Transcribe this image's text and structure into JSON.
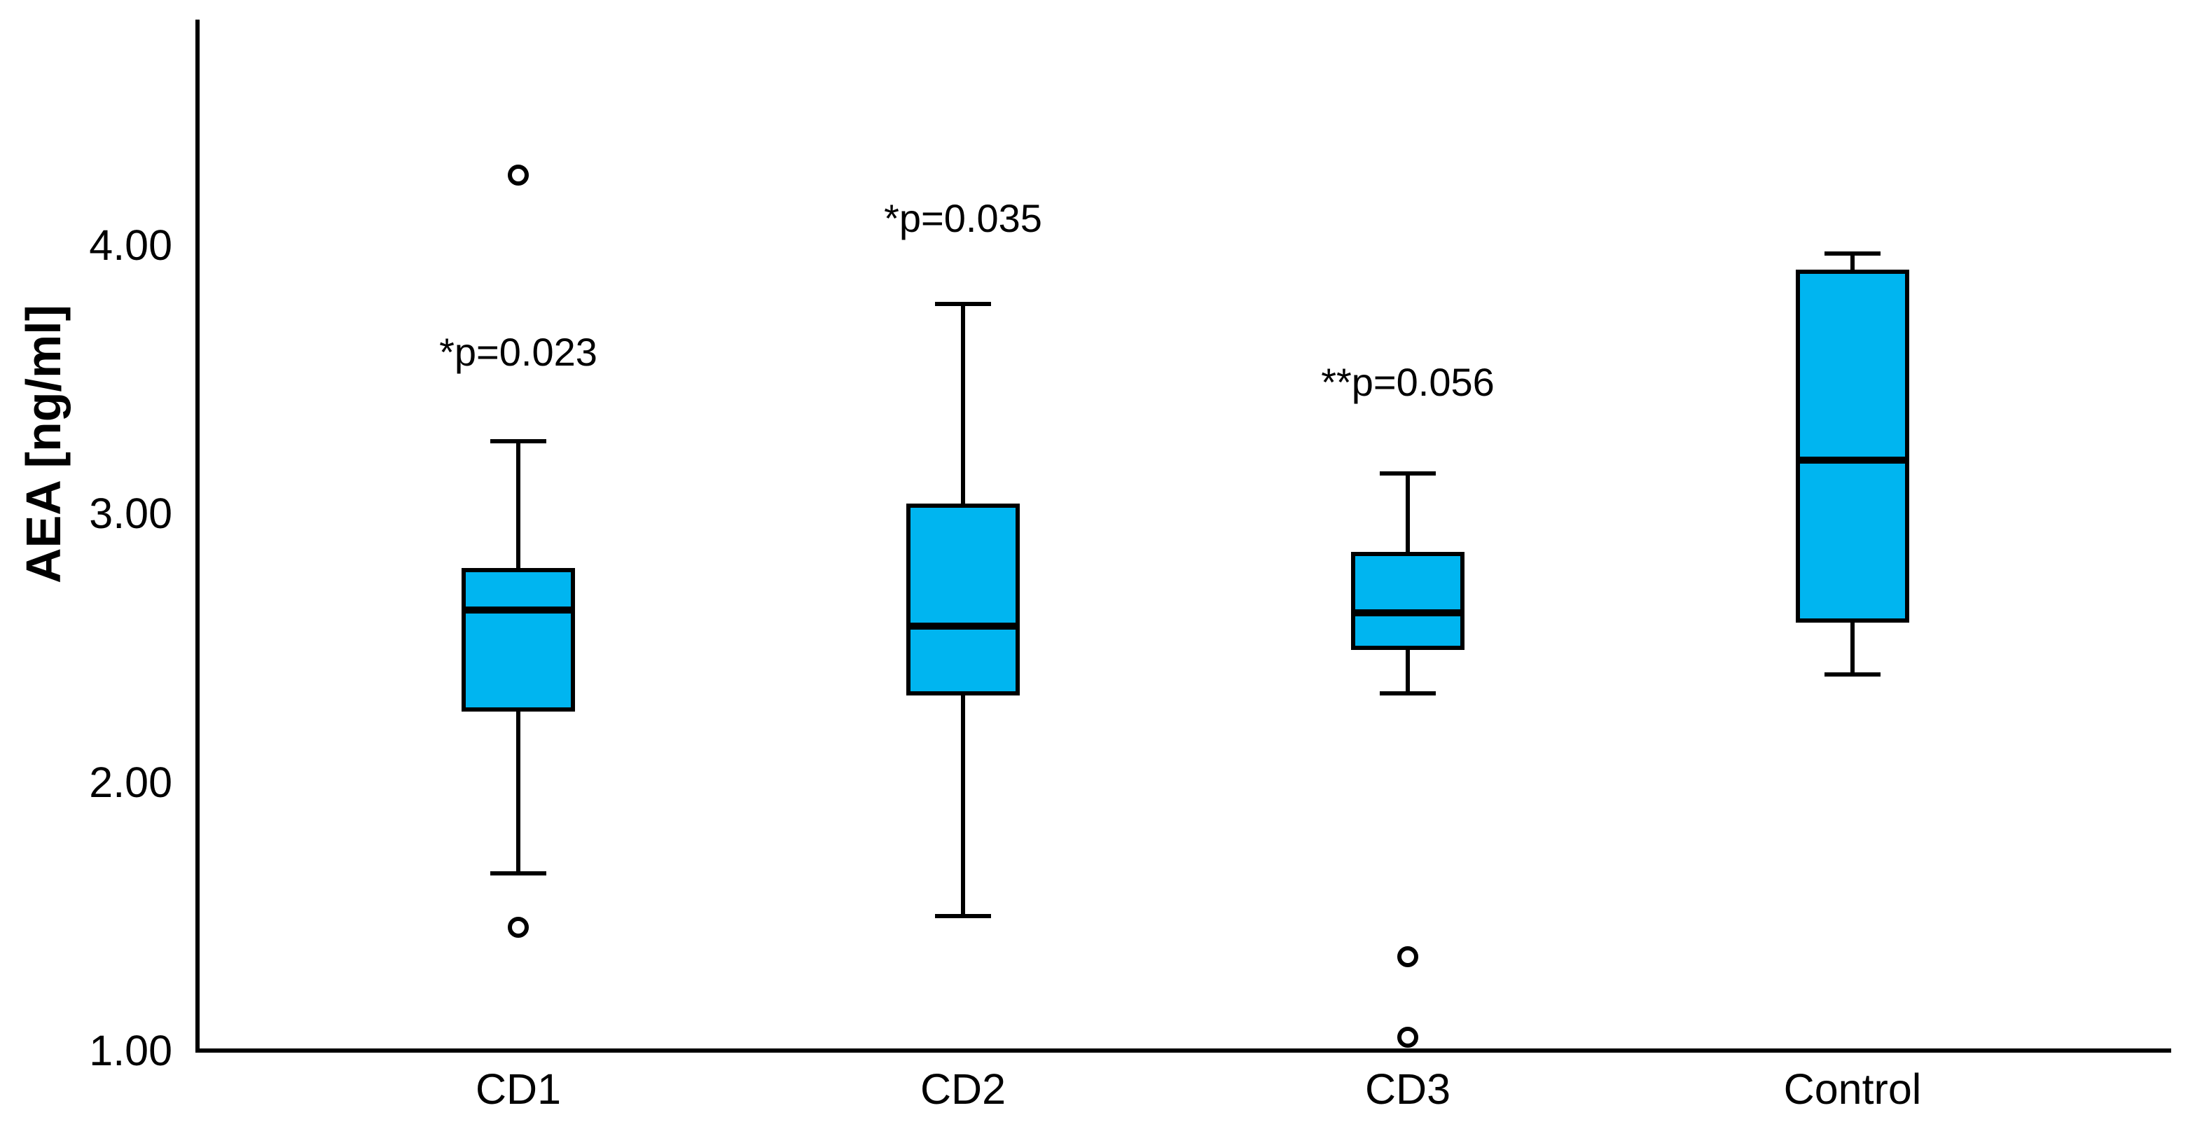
{
  "chart_data": {
    "type": "box",
    "title": "",
    "xlabel": "",
    "ylabel": "AEA [ng/ml]",
    "ylim": [
      1.0,
      4.84
    ],
    "grid": false,
    "legend": null,
    "yticks": [
      {
        "value": 1.0,
        "label": "1.00"
      },
      {
        "value": 2.0,
        "label": "2.00"
      },
      {
        "value": 3.0,
        "label": "3.00"
      },
      {
        "value": 4.0,
        "label": "4.00"
      }
    ],
    "categories": [
      "CD1",
      "CD2",
      "CD3",
      "Control"
    ],
    "series": [
      {
        "name": "CD1",
        "whisker_low": 1.66,
        "q1": 2.27,
        "median": 2.64,
        "q3": 2.79,
        "whisker_high": 3.27,
        "outliers": [
          4.26,
          1.46
        ],
        "annotation": {
          "text": "*p=0.023",
          "y_value": 3.6
        }
      },
      {
        "name": "CD2",
        "whisker_low": 1.5,
        "q1": 2.33,
        "median": 2.58,
        "q3": 3.03,
        "whisker_high": 3.78,
        "outliers": [],
        "annotation": {
          "text": "*p=0.035",
          "y_value": 4.1
        }
      },
      {
        "name": "CD3",
        "whisker_low": 2.33,
        "q1": 2.5,
        "median": 2.63,
        "q3": 2.85,
        "whisker_high": 3.15,
        "outliers": [
          1.35,
          1.05
        ],
        "annotation": {
          "text": "**p=0.056",
          "y_value": 3.49
        }
      },
      {
        "name": "Control",
        "whisker_low": 2.4,
        "q1": 2.6,
        "median": 3.2,
        "q3": 3.9,
        "whisker_high": 3.97,
        "outliers": [],
        "annotation": null
      }
    ],
    "colors": {
      "box_fill": "#00b5f0",
      "line": "#000000",
      "background": "#ffffff"
    }
  }
}
